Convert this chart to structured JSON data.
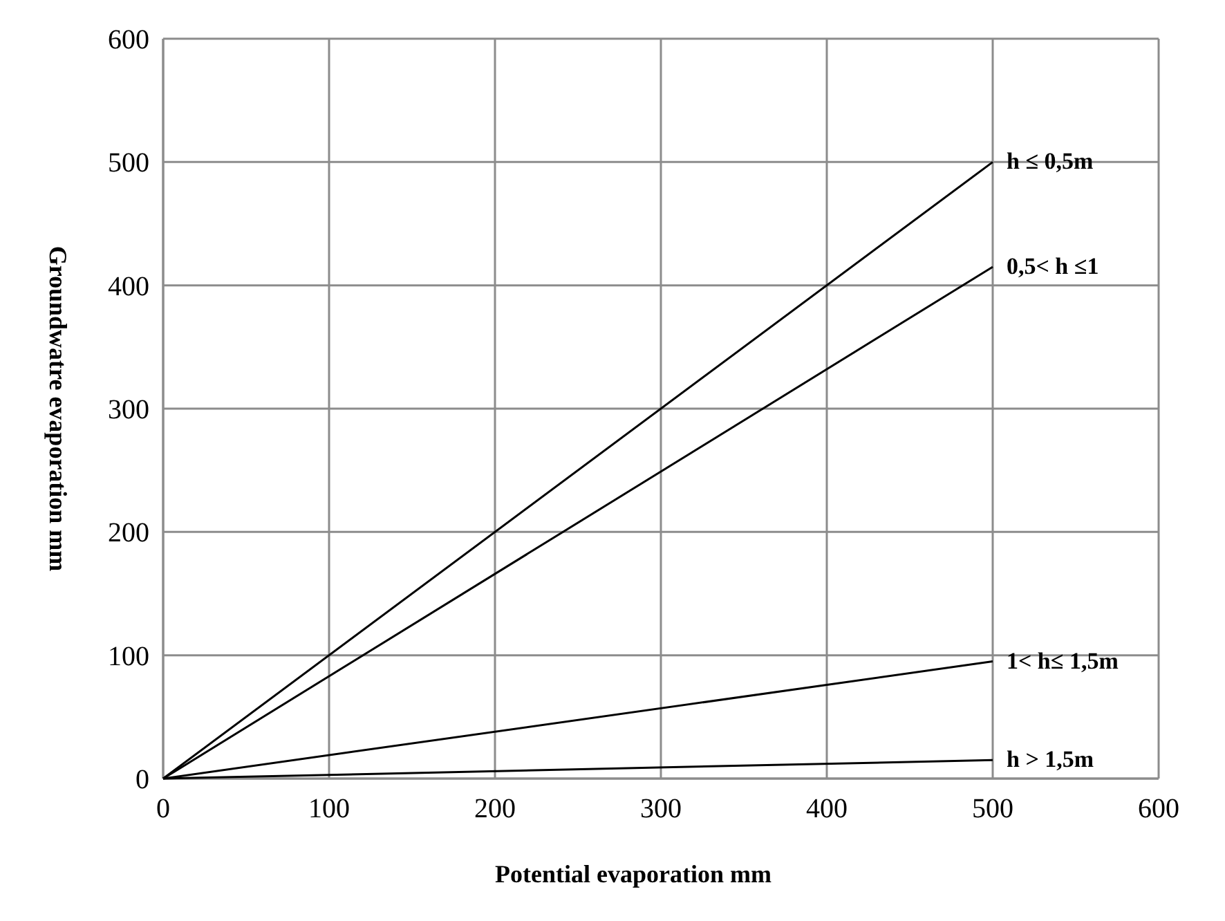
{
  "chart_data": {
    "type": "line",
    "xlabel": "Potential evaporation  mm",
    "ylabel": "Groundwatre evaporation mm",
    "x": [
      0,
      500
    ],
    "series": [
      {
        "name": "h ≤ 0,5m",
        "color": "#000000",
        "values": [
          0,
          500
        ]
      },
      {
        "name": "0,5< h ≤1",
        "color": "#000000",
        "values": [
          0,
          415
        ]
      },
      {
        "name": "1< h≤ 1,5m",
        "color": "#000000",
        "values": [
          0,
          95
        ]
      },
      {
        "name": "h > 1,5m",
        "color": "#000000",
        "values": [
          0,
          15
        ]
      }
    ],
    "xlim": [
      0,
      600
    ],
    "xticks": [
      0,
      100,
      200,
      300,
      400,
      500,
      600
    ],
    "ylim": [
      0,
      600
    ],
    "yticks": [
      0,
      100,
      200,
      300,
      400,
      500,
      600
    ],
    "grid": true,
    "marker": "none",
    "line_style": "solid",
    "legend": false
  }
}
